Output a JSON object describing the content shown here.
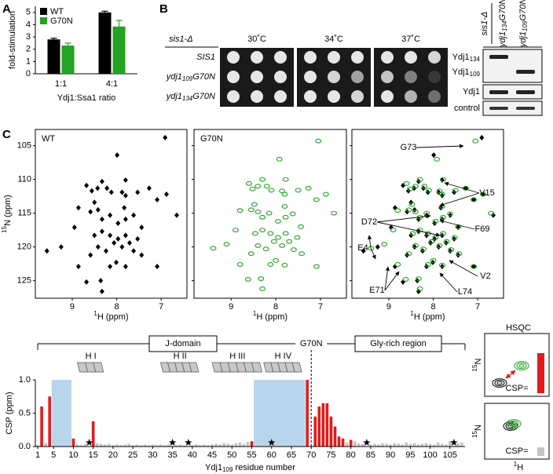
{
  "panel_labels": [
    "A",
    "B",
    "C"
  ],
  "spot_assay": {
    "strain": "sis1-Δ",
    "temperatures": [
      "30˚C",
      "34˚C",
      "37˚C"
    ],
    "rows": [
      {
        "gene": "SIS1"
      },
      {
        "gene": "ydj1",
        "sub": "109",
        "suffix": "G70N"
      },
      {
        "gene": "ydj1",
        "sub": "134",
        "suffix": "G70N"
      }
    ]
  },
  "western": {
    "strain": "sis1-Δ",
    "lanes": [
      {
        "gene": "ydj1",
        "sub": "134",
        "suffix": "G70N"
      },
      {
        "gene": "ydj1",
        "sub": "109",
        "suffix": "G70N"
      }
    ],
    "bands": [
      {
        "name": "Ydj1",
        "sub": "134"
      },
      {
        "name": "Ydj1",
        "sub": "109"
      },
      {
        "name": "Ydj1"
      },
      {
        "name": "control"
      }
    ]
  },
  "hsqc_inset": {
    "title": "HSQC",
    "ylabel_sup": "15",
    "ylabel": "N",
    "xlabel_sup": "1",
    "xlabel": "H",
    "csp_label": "CSP="
  },
  "chart_data": [
    {
      "type": "bar",
      "categories": [
        "1:1",
        "4:1"
      ],
      "series": [
        {
          "name": "WT",
          "color": "#000000",
          "values": [
            2.8,
            5.0
          ],
          "errors": [
            0.1,
            0.1
          ]
        },
        {
          "name": "G70N",
          "color": "#22a322",
          "values": [
            2.3,
            3.85
          ],
          "errors": [
            0.2,
            0.5
          ]
        }
      ],
      "xlabel": "Ydj1:Ssa1 ratio",
      "ylabel": "fold-stimulation",
      "ylim": [
        0,
        5.5
      ],
      "yticks": [
        0,
        1,
        2,
        3,
        4,
        5
      ],
      "legend": "upper left"
    },
    {
      "type": "scatter",
      "title": "WT",
      "color": "#000000",
      "x": [
        6.91,
        7.99,
        8.68,
        8.56,
        8.43,
        8.33,
        8.22,
        8.12,
        7.88,
        7.8,
        7.8,
        7.53,
        7.27,
        7.09,
        6.88,
        6.65,
        8.86,
        8.59,
        8.42,
        8.33,
        8.15,
        7.97,
        7.8,
        7.62,
        7.44,
        8.5,
        8.33,
        8.15,
        7.97,
        7.8,
        8.06,
        7.88,
        7.71,
        8.24,
        8.42,
        7.62,
        8.59,
        8.95,
        9.25,
        8.15,
        8.01,
        7.8,
        7.09,
        8.86,
        8.36,
        8.68,
        8.33,
        7.53,
        7.44,
        7.83,
        9.57,
        8.5
      ],
      "y": [
        103.8,
        106.4,
        110.9,
        111.7,
        111.3,
        110.3,
        111.3,
        111.9,
        111.9,
        110.1,
        112.4,
        111.9,
        111.3,
        113.0,
        112.2,
        115.3,
        114.2,
        114.8,
        114.5,
        115.9,
        115.3,
        116.5,
        115.9,
        115.3,
        117.1,
        118.3,
        117.7,
        118.3,
        118.8,
        118.3,
        119.4,
        120.0,
        119.4,
        120.6,
        120.0,
        120.6,
        121.2,
        117.1,
        120.0,
        122.9,
        122.3,
        122.9,
        122.9,
        122.9,
        125.0,
        125.2,
        126.6,
        118.8,
        121.2,
        114.2,
        120.6,
        113.4
      ],
      "xlabel_sup": "1",
      "xlabel": "H (ppm)",
      "ylabel_sup": "15",
      "ylabel": "N (ppm)",
      "xlim": [
        9.83,
        6.42
      ],
      "xticks": [
        9,
        8,
        7
      ],
      "ylim": [
        127.6,
        102.6
      ],
      "yticks": [
        105,
        110,
        115,
        120,
        125
      ]
    },
    {
      "type": "scatter",
      "title": "G70N",
      "color": "#22a322",
      "x": [
        7.05,
        7.92,
        8.6,
        8.52,
        8.4,
        8.3,
        8.2,
        8.1,
        7.86,
        7.78,
        7.8,
        7.5,
        7.27,
        7.09,
        6.88,
        6.7,
        8.8,
        8.55,
        8.4,
        8.3,
        8.15,
        7.95,
        7.78,
        7.62,
        7.44,
        8.46,
        8.3,
        8.12,
        7.95,
        7.78,
        8.04,
        7.86,
        7.7,
        8.22,
        8.4,
        7.6,
        8.55,
        8.9,
        9.1,
        8.12,
        8.0,
        7.8,
        7.09,
        8.8,
        8.33,
        8.62,
        8.3,
        7.52,
        7.42,
        7.8,
        9.4,
        8.48
      ],
      "y": [
        104.3,
        107.0,
        110.6,
        111.4,
        111.0,
        110.0,
        111.0,
        111.6,
        111.7,
        110.0,
        112.2,
        111.6,
        111.3,
        113.0,
        112.2,
        115.0,
        114.6,
        114.5,
        114.8,
        115.6,
        115.0,
        116.2,
        115.6,
        115.1,
        117.0,
        118.0,
        117.5,
        118.0,
        118.6,
        118.0,
        119.2,
        119.8,
        119.2,
        120.3,
        119.8,
        120.4,
        121.0,
        117.5,
        119.6,
        122.6,
        122.0,
        122.7,
        122.9,
        122.6,
        124.7,
        124.8,
        126.2,
        118.6,
        121.0,
        114.0,
        120.2,
        113.7
      ],
      "xlabel_sup": "1",
      "xlabel": "H (ppm)",
      "xlim": [
        9.83,
        6.42
      ],
      "xticks": [
        9,
        8,
        7
      ],
      "ylim": [
        127.6,
        102.6
      ],
      "yticks": [
        105,
        110,
        115,
        120,
        125
      ]
    },
    {
      "type": "overlay",
      "annotations": [
        "G73",
        "V15",
        "D72",
        "F69",
        "E4",
        "V2",
        "L74",
        "E71"
      ],
      "xlabel_sup": "1",
      "xlabel": "H (ppm)",
      "xlim": [
        9.83,
        6.42
      ],
      "xticks": [
        9,
        8,
        7
      ],
      "ylim": [
        127.6,
        102.6
      ],
      "yticks": [
        105,
        110,
        115,
        120,
        125
      ]
    },
    {
      "type": "residue_bar",
      "x": [
        1,
        2,
        3,
        4,
        5,
        6,
        7,
        8,
        9,
        10,
        11,
        12,
        13,
        14,
        15,
        16,
        17,
        18,
        19,
        20,
        21,
        22,
        23,
        24,
        25,
        26,
        27,
        28,
        29,
        30,
        31,
        32,
        33,
        34,
        35,
        36,
        37,
        38,
        39,
        40,
        41,
        42,
        43,
        44,
        45,
        46,
        47,
        48,
        49,
        50,
        51,
        52,
        53,
        54,
        55,
        56,
        57,
        58,
        59,
        60,
        61,
        62,
        63,
        64,
        65,
        66,
        67,
        68,
        69,
        70,
        71,
        72,
        73,
        74,
        75,
        76,
        77,
        78,
        79,
        80,
        81,
        82,
        83,
        84,
        85,
        86,
        87,
        88,
        89,
        90,
        91,
        92,
        93,
        94,
        95,
        96,
        97,
        98,
        99,
        100,
        101,
        102,
        103,
        104,
        105,
        106,
        107,
        108
      ],
      "series": [
        {
          "color": "#c4c4c4",
          "values": [
            0.02,
            null,
            0.05,
            null,
            null,
            null,
            null,
            null,
            null,
            null,
            0.03,
            0.02,
            0.04,
            null,
            null,
            0.05,
            0.04,
            0.03,
            0.04,
            0.02,
            0.03,
            0.02,
            0.03,
            0.04,
            0.02,
            0.03,
            0.02,
            0.03,
            0.02,
            0.03,
            0.02,
            0.03,
            0.02,
            0.03,
            null,
            0.02,
            0.03,
            0.02,
            null,
            0.02,
            0.03,
            0.02,
            0.03,
            0.02,
            0.03,
            0.04,
            0.03,
            0.05,
            0.04,
            0.03,
            0.05,
            0.06,
            0.04,
            0.07,
            null,
            null,
            null,
            null,
            null,
            null,
            null,
            null,
            null,
            null,
            null,
            null,
            null,
            null,
            null,
            null,
            null,
            null,
            null,
            null,
            null,
            null,
            null,
            null,
            0.06,
            null,
            0.08,
            0.05,
            0.04,
            null,
            0.03,
            0.04,
            0.03,
            0.05,
            0.04,
            0.03,
            0.05,
            0.04,
            0.03,
            0.06,
            0.04,
            0.05,
            0.03,
            0.04,
            0.05,
            0.04,
            0.03,
            0.06,
            0.04,
            0.03,
            0.08,
            null,
            0.05,
            0.06
          ]
        },
        {
          "color": "#e31a1c",
          "values": [
            null,
            0.6,
            null,
            0.75,
            null,
            null,
            null,
            null,
            null,
            0.12,
            null,
            null,
            null,
            null,
            0.38,
            null,
            null,
            null,
            null,
            null,
            null,
            null,
            null,
            null,
            null,
            null,
            null,
            null,
            null,
            null,
            null,
            null,
            null,
            null,
            null,
            null,
            null,
            null,
            null,
            null,
            null,
            null,
            null,
            null,
            null,
            null,
            null,
            null,
            null,
            null,
            null,
            null,
            null,
            null,
            0.08,
            null,
            null,
            null,
            null,
            null,
            null,
            null,
            null,
            null,
            null,
            null,
            null,
            null,
            1.0,
            null,
            0.45,
            0.6,
            0.65,
            0.65,
            0.45,
            0.3,
            0.15,
            0.12,
            null,
            0.1,
            null,
            null,
            null,
            null,
            null,
            null,
            null,
            null,
            null,
            null,
            null,
            null,
            null,
            null,
            null,
            null,
            null,
            null,
            null,
            null,
            null,
            null,
            null,
            null,
            null,
            null,
            null,
            null
          ]
        }
      ],
      "missing": [
        14,
        35,
        39,
        60,
        84,
        106
      ],
      "highlight_ranges": [
        [
          4.5,
          9.5
        ],
        [
          55.5,
          68.5
        ]
      ],
      "highlight_color": "#b9d5ec",
      "mutation_site": 70,
      "mutation_label": "G70N",
      "domains": [
        "J-domain",
        "Gly-rich region"
      ],
      "helices": [
        "H I",
        "H II",
        "H III",
        "H IV"
      ],
      "xlabel": "Ydj1",
      "xlabel_sub": "109",
      "xlabel_suffix": " residue number",
      "ylabel": "CSP (ppm)",
      "xlim": [
        0.4,
        108.8
      ],
      "xticks": [
        1,
        5,
        10,
        15,
        20,
        25,
        30,
        35,
        40,
        45,
        50,
        55,
        60,
        65,
        70,
        75,
        80,
        85,
        90,
        95,
        100,
        105
      ],
      "ylim": [
        0,
        1.0
      ],
      "yticks": [
        {
          "value": 0,
          "label": "0.0"
        },
        {
          "value": 0.5,
          "label": "0.5"
        },
        {
          "value": 1.0,
          "label": "1.0"
        }
      ]
    }
  ]
}
